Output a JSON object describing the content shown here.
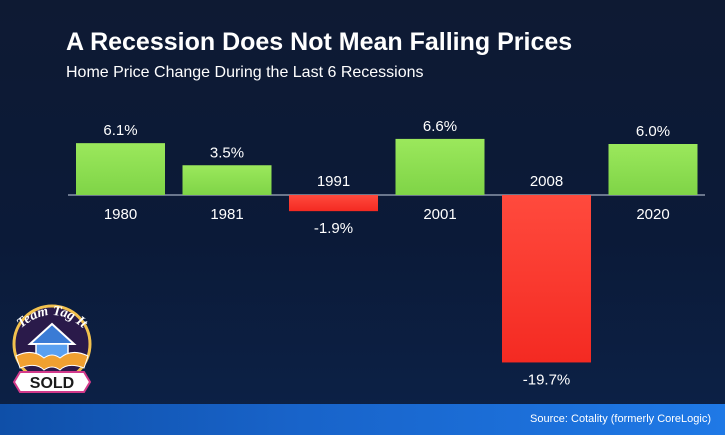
{
  "header": {
    "title": "A Recession Does Not Mean Falling Prices",
    "subtitle": "Home Price Change During the Last 6 Recessions"
  },
  "chart_data": {
    "type": "bar",
    "categories": [
      "1980",
      "1981",
      "1991",
      "2001",
      "2008",
      "2020"
    ],
    "values": [
      6.1,
      3.5,
      -1.9,
      6.6,
      -19.7,
      6.0
    ],
    "value_labels": [
      "6.1%",
      "3.5%",
      "-1.9%",
      "6.6%",
      "-19.7%",
      "6.0%"
    ],
    "positive_color": "#8fe052",
    "negative_color": "#ff3b30",
    "ylim": [
      -19.7,
      6.6
    ],
    "grid": false,
    "legend": "none"
  },
  "logo": {
    "text_top": "Team Tag It",
    "text_bottom": "SOLD"
  },
  "footer": {
    "source": "Source: Cotality (formerly CoreLogic)"
  }
}
